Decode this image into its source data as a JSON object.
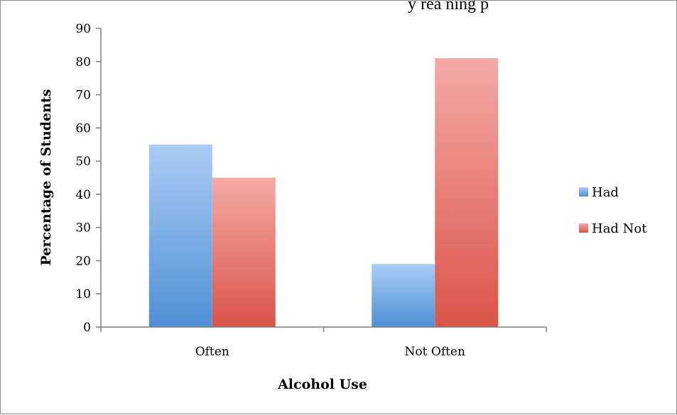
{
  "chart_data": {
    "type": "bar",
    "categories": [
      "Often",
      "Not Often"
    ],
    "series": [
      {
        "name": "Had",
        "values": [
          55,
          19
        ],
        "color": "#5b9bd5"
      },
      {
        "name": "Had Not",
        "values": [
          45,
          81
        ],
        "color": "#e06666"
      }
    ],
    "xlabel": "Alcohol Use",
    "ylabel": "Percentage of Students",
    "ylim": [
      0,
      90
    ],
    "yticks": [
      0,
      10,
      20,
      30,
      40,
      50,
      60,
      70,
      80,
      90
    ],
    "legend_position": "right",
    "grid": false
  },
  "caption_fragment": "y  rea  ning   p"
}
